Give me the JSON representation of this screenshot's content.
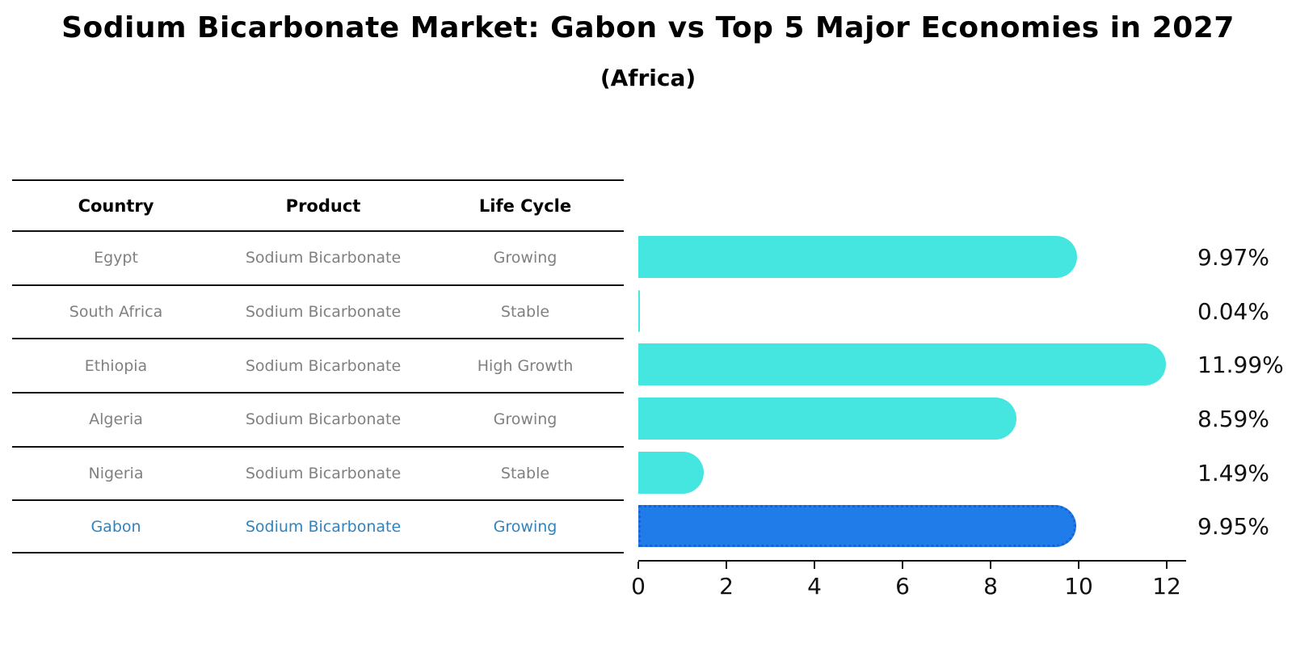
{
  "title": "Sodium Bicarbonate Market: Gabon vs Top 5 Major Economies in 2027",
  "subtitle": "(Africa)",
  "table": {
    "headers": [
      "Country",
      "Product",
      "Life Cycle"
    ],
    "rows": [
      {
        "country": "Egypt",
        "product": "Sodium Bicarbonate",
        "life_cycle": "Growing",
        "highlighted": false
      },
      {
        "country": "South Africa",
        "product": "Sodium Bicarbonate",
        "life_cycle": "Stable",
        "highlighted": false
      },
      {
        "country": "Ethiopia",
        "product": "Sodium Bicarbonate",
        "life_cycle": "High Growth",
        "highlighted": false
      },
      {
        "country": "Algeria",
        "product": "Sodium Bicarbonate",
        "life_cycle": "Growing",
        "highlighted": false
      },
      {
        "country": "Nigeria",
        "product": "Sodium Bicarbonate",
        "life_cycle": "Stable",
        "highlighted": false
      },
      {
        "country": "Gabon",
        "product": "Sodium Bicarbonate",
        "life_cycle": "Growing",
        "highlighted": true
      }
    ]
  },
  "chart_data": {
    "type": "bar",
    "orientation": "horizontal",
    "title": "Sodium Bicarbonate Market: Gabon vs Top 5 Major Economies in 2027 (Africa)",
    "categories": [
      "Egypt",
      "South Africa",
      "Ethiopia",
      "Algeria",
      "Nigeria",
      "Gabon"
    ],
    "values": [
      9.97,
      0.04,
      11.99,
      8.59,
      1.49,
      9.95
    ],
    "value_labels": [
      "9.97%",
      "0.04%",
      "11.99%",
      "8.59%",
      "1.49%",
      "9.95%"
    ],
    "xticks": [
      0,
      2,
      4,
      6,
      8,
      10,
      12
    ],
    "xlim": [
      0,
      12.44
    ],
    "grid": false,
    "legend": false,
    "highlight_index": 5,
    "colors": {
      "bar": "#45E6E0",
      "highlight_fill": "#1F7CE9",
      "highlight_edge": "#1663D6",
      "row_text": "#808080",
      "highlight_text": "#3182BD",
      "axis": "#111111"
    }
  }
}
